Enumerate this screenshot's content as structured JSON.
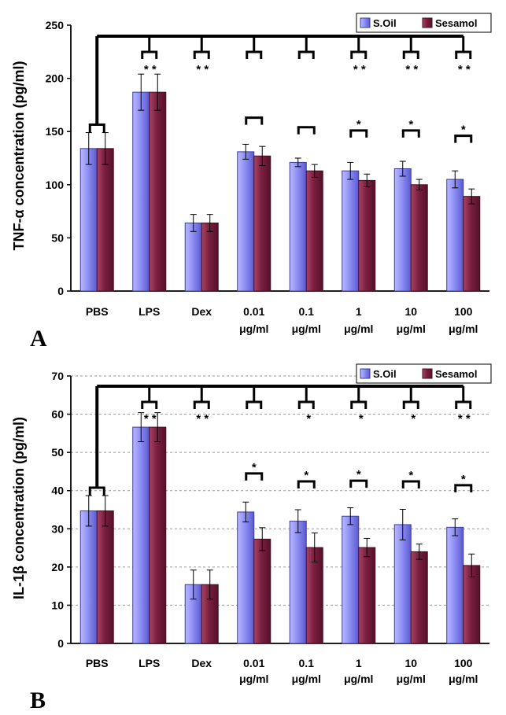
{
  "colors": {
    "soil_top": "#c9c9ff",
    "soil_mid": "#7d7df0",
    "soil_edge": "#3c3c9e",
    "ses_top": "#b45a78",
    "ses_mid": "#7a1f3f",
    "ses_edge": "#4a0f25",
    "grid": "#9a9a9a"
  },
  "chart_data": [
    {
      "type": "bar",
      "panel_label": "A",
      "ylabel": "TNF-α concentration (pg/ml)",
      "ylim": [
        0,
        250
      ],
      "yticks": [
        "0",
        "50",
        "100",
        "150",
        "200",
        "250"
      ],
      "gridlines": false,
      "legend": {
        "position": "top-right",
        "entries": [
          "S.Oil",
          "Sesamol"
        ]
      },
      "categories": [
        {
          "line1": "PBS",
          "line2": ""
        },
        {
          "line1": "LPS",
          "line2": ""
        },
        {
          "line1": "Dex",
          "line2": ""
        },
        {
          "line1": "0.01",
          "line2": "μg/ml"
        },
        {
          "line1": "0.1",
          "line2": "μg/ml"
        },
        {
          "line1": "1",
          "line2": "μg/ml"
        },
        {
          "line1": "10",
          "line2": "μg/ml"
        },
        {
          "line1": "100",
          "line2": "μg/ml"
        }
      ],
      "series": [
        {
          "name": "S.Oil",
          "values": [
            134,
            187,
            64,
            131,
            121,
            113,
            115,
            105
          ],
          "errors": [
            15,
            17,
            8,
            7,
            4,
            8,
            7,
            8
          ]
        },
        {
          "name": "Sesamol",
          "values": [
            134,
            187,
            64,
            127,
            113,
            104,
            100,
            89
          ],
          "errors": [
            15,
            17,
            8,
            9,
            6,
            6,
            5,
            7
          ]
        }
      ],
      "top_bracket_stars": [
        "",
        "* *",
        "* *",
        "",
        "",
        "* *",
        "* *",
        "* *"
      ],
      "pair_bracket_stars": [
        "",
        "",
        "",
        "",
        "",
        "*",
        "*",
        "*"
      ],
      "pair_bracket_y": [
        null,
        null,
        null,
        163,
        154,
        151,
        151,
        146
      ]
    },
    {
      "type": "bar",
      "panel_label": "B",
      "ylabel": "IL-1β concentration (pg/ml)",
      "ylim": [
        0,
        70
      ],
      "yticks": [
        "0",
        "10",
        "20",
        "30",
        "40",
        "50",
        "60",
        "70"
      ],
      "gridlines": true,
      "legend": {
        "position": "top-right",
        "entries": [
          "S.Oil",
          "Sesamol"
        ]
      },
      "categories": [
        {
          "line1": "PBS",
          "line2": ""
        },
        {
          "line1": "LPS",
          "line2": ""
        },
        {
          "line1": "Dex",
          "line2": ""
        },
        {
          "line1": "0.01",
          "line2": "μg/ml"
        },
        {
          "line1": "0.1",
          "line2": "μg/ml"
        },
        {
          "line1": "1",
          "line2": "μg/ml"
        },
        {
          "line1": "10",
          "line2": "μg/ml"
        },
        {
          "line1": "100",
          "line2": "μg/ml"
        }
      ],
      "series": [
        {
          "name": "S.Oil",
          "values": [
            34.7,
            56.6,
            15.4,
            34.4,
            32.0,
            33.3,
            31.1,
            30.4
          ],
          "errors": [
            4.0,
            3.8,
            3.8,
            2.6,
            3.0,
            2.2,
            4.0,
            2.2
          ]
        },
        {
          "name": "Sesamol",
          "values": [
            34.7,
            56.6,
            15.4,
            27.3,
            25.1,
            25.1,
            24.0,
            20.4
          ],
          "errors": [
            4.0,
            3.8,
            3.8,
            3.0,
            3.8,
            2.4,
            2.0,
            3.0
          ]
        }
      ],
      "top_bracket_stars": [
        "",
        "* *",
        "* *",
        "",
        " *",
        " *",
        " *",
        "* *"
      ],
      "pair_bracket_stars": [
        "",
        "",
        "",
        "*",
        "*",
        "*",
        "*",
        "*"
      ],
      "pair_bracket_y": [
        null,
        null,
        null,
        44.5,
        42.4,
        42.6,
        42.4,
        41.4
      ]
    }
  ]
}
